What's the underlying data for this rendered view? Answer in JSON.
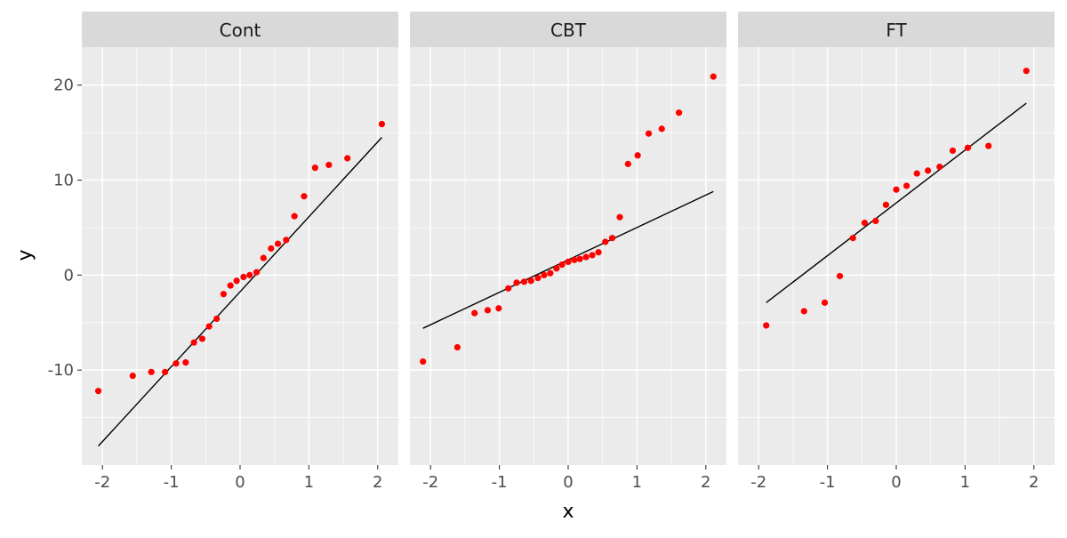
{
  "chart_data": {
    "type": "scatter",
    "xlabel": "x",
    "ylabel": "y",
    "xlim": [
      -2.3,
      2.3
    ],
    "ylim": [
      -20,
      24
    ],
    "x_ticks": [
      -2,
      -1,
      0,
      1,
      2
    ],
    "x_tick_labels": [
      "-2",
      "-1",
      "0",
      "1",
      "2"
    ],
    "y_ticks": [
      -10,
      0,
      10,
      20
    ],
    "y_tick_labels": [
      "-10",
      "0",
      "10",
      "20"
    ],
    "grid": true,
    "point_color": "#ff0000",
    "line_color": "#000000",
    "panel_background": "#ebebeb",
    "strip_background": "#d9d9d9",
    "panels": [
      {
        "name": "Cont",
        "points": [
          {
            "x": -2.06,
            "y": -12.2
          },
          {
            "x": -1.56,
            "y": -10.6
          },
          {
            "x": -1.29,
            "y": -10.2
          },
          {
            "x": -1.09,
            "y": -10.2
          },
          {
            "x": -0.93,
            "y": -9.3
          },
          {
            "x": -0.79,
            "y": -9.2
          },
          {
            "x": -0.67,
            "y": -7.1
          },
          {
            "x": -0.55,
            "y": -6.7
          },
          {
            "x": -0.45,
            "y": -5.4
          },
          {
            "x": -0.34,
            "y": -4.6
          },
          {
            "x": -0.24,
            "y": -2.0
          },
          {
            "x": -0.14,
            "y": -1.1
          },
          {
            "x": -0.05,
            "y": -0.6
          },
          {
            "x": 0.05,
            "y": -0.2
          },
          {
            "x": 0.14,
            "y": 0.0
          },
          {
            "x": 0.24,
            "y": 0.3
          },
          {
            "x": 0.34,
            "y": 1.8
          },
          {
            "x": 0.45,
            "y": 2.8
          },
          {
            "x": 0.55,
            "y": 3.3
          },
          {
            "x": 0.67,
            "y": 3.7
          },
          {
            "x": 0.79,
            "y": 6.2
          },
          {
            "x": 0.93,
            "y": 8.3
          },
          {
            "x": 1.09,
            "y": 11.3
          },
          {
            "x": 1.29,
            "y": 11.6
          },
          {
            "x": 1.56,
            "y": 12.3
          },
          {
            "x": 2.06,
            "y": 15.9
          }
        ],
        "line": {
          "x": [
            -2.06,
            2.06
          ],
          "y": [
            -18.0,
            14.5
          ]
        }
      },
      {
        "name": "CBT",
        "points": [
          {
            "x": -2.11,
            "y": -9.1
          },
          {
            "x": -1.61,
            "y": -7.6
          },
          {
            "x": -1.36,
            "y": -4.0
          },
          {
            "x": -1.17,
            "y": -3.7
          },
          {
            "x": -1.01,
            "y": -3.5
          },
          {
            "x": -0.87,
            "y": -1.4
          },
          {
            "x": -0.75,
            "y": -0.8
          },
          {
            "x": -0.64,
            "y": -0.7
          },
          {
            "x": -0.54,
            "y": -0.6
          },
          {
            "x": -0.44,
            "y": -0.3
          },
          {
            "x": -0.35,
            "y": 0.0
          },
          {
            "x": -0.26,
            "y": 0.2
          },
          {
            "x": -0.17,
            "y": 0.7
          },
          {
            "x": -0.09,
            "y": 1.1
          },
          {
            "x": 0.0,
            "y": 1.4
          },
          {
            "x": 0.09,
            "y": 1.6
          },
          {
            "x": 0.17,
            "y": 1.7
          },
          {
            "x": 0.26,
            "y": 1.9
          },
          {
            "x": 0.35,
            "y": 2.1
          },
          {
            "x": 0.44,
            "y": 2.4
          },
          {
            "x": 0.54,
            "y": 3.5
          },
          {
            "x": 0.64,
            "y": 3.9
          },
          {
            "x": 0.75,
            "y": 6.1
          },
          {
            "x": 0.87,
            "y": 11.7
          },
          {
            "x": 1.01,
            "y": 12.6
          },
          {
            "x": 1.17,
            "y": 14.9
          },
          {
            "x": 1.36,
            "y": 15.4
          },
          {
            "x": 1.61,
            "y": 17.1
          },
          {
            "x": 2.11,
            "y": 20.9
          }
        ],
        "line": {
          "x": [
            -2.11,
            2.11
          ],
          "y": [
            -5.6,
            8.8
          ]
        }
      },
      {
        "name": "FT",
        "points": [
          {
            "x": -1.89,
            "y": -5.3
          },
          {
            "x": -1.34,
            "y": -3.8
          },
          {
            "x": -1.04,
            "y": -2.9
          },
          {
            "x": -0.82,
            "y": -0.1
          },
          {
            "x": -0.63,
            "y": 3.9
          },
          {
            "x": -0.46,
            "y": 5.5
          },
          {
            "x": -0.3,
            "y": 5.7
          },
          {
            "x": -0.15,
            "y": 7.4
          },
          {
            "x": 0.0,
            "y": 9.0
          },
          {
            "x": 0.15,
            "y": 9.4
          },
          {
            "x": 0.3,
            "y": 10.7
          },
          {
            "x": 0.46,
            "y": 11.0
          },
          {
            "x": 0.63,
            "y": 11.4
          },
          {
            "x": 0.82,
            "y": 13.1
          },
          {
            "x": 1.04,
            "y": 13.4
          },
          {
            "x": 1.34,
            "y": 13.6
          },
          {
            "x": 1.89,
            "y": 21.5
          }
        ],
        "line": {
          "x": [
            -1.89,
            1.89
          ],
          "y": [
            -2.9,
            18.1
          ]
        }
      }
    ]
  }
}
